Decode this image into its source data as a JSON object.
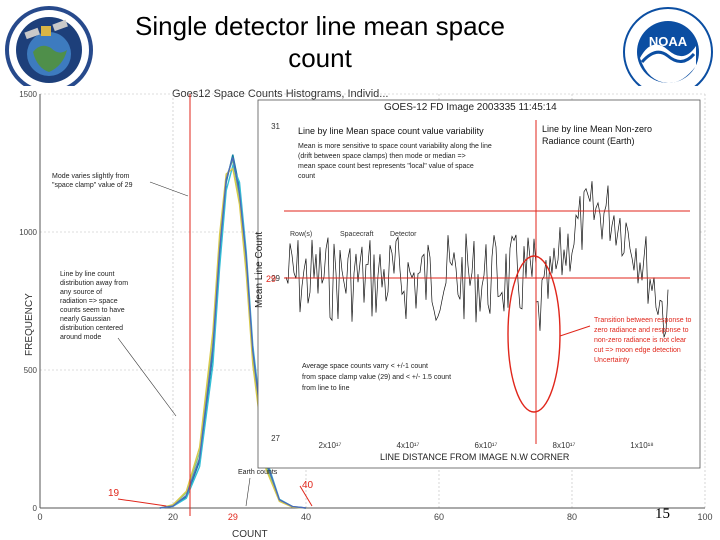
{
  "slide": {
    "title_line1": "Single detector line mean space",
    "title_line2": "count",
    "page_number": "15"
  },
  "colors": {
    "red": "#e0261b",
    "noaa_blue": "#0b4ea2",
    "orbit_blue": "#274a8c"
  },
  "icons": [
    "goes-satellite-logo",
    "noaa-logo"
  ],
  "chart_data": [
    {
      "type": "line",
      "title": "Goes12 Space Counts Histograms, Individ...",
      "ylabel": "FREQUENCY",
      "xlabel": "COUNT",
      "xlim": [
        0,
        100
      ],
      "ylim": [
        0,
        1500
      ],
      "x_ticks": [
        "0",
        "20",
        "29",
        "40",
        "60",
        "80",
        "100"
      ],
      "y_ticks": [
        "0",
        "500",
        "1000",
        "1500"
      ],
      "grid": true,
      "x": [
        18,
        20,
        22,
        24,
        26,
        27,
        28,
        29,
        30,
        31,
        32,
        34,
        36,
        38,
        40
      ],
      "series": [
        {
          "color": "#0d7fa0",
          "values": [
            0,
            8,
            40,
            170,
            560,
            910,
            1180,
            1280,
            1160,
            900,
            560,
            160,
            28,
            4,
            0
          ]
        },
        {
          "color": "#7cc98c",
          "values": [
            0,
            10,
            55,
            200,
            600,
            950,
            1200,
            1260,
            1120,
            880,
            540,
            150,
            26,
            4,
            0
          ]
        },
        {
          "color": "#33bfd6",
          "values": [
            0,
            6,
            35,
            150,
            520,
            870,
            1150,
            1240,
            1180,
            930,
            590,
            180,
            32,
            5,
            0
          ]
        },
        {
          "color": "#d8c94a",
          "values": [
            0,
            12,
            60,
            220,
            640,
            990,
            1210,
            1230,
            1100,
            850,
            520,
            140,
            24,
            3,
            0
          ]
        },
        {
          "color": "#4e6ab8",
          "values": [
            0,
            7,
            45,
            180,
            580,
            930,
            1190,
            1270,
            1140,
            910,
            570,
            170,
            30,
            5,
            0
          ]
        }
      ],
      "markers": [
        {
          "label": "19",
          "x": 19
        },
        {
          "label": "29",
          "x": 29
        },
        {
          "label": "40",
          "x": 40
        }
      ],
      "annotations": [
        {
          "lines": [
            "Mode varies slightly from",
            "\"space clamp\" value of 29"
          ]
        },
        {
          "lines": [
            "Line by line count",
            "distribution away from",
            "any source of",
            "radiation => space",
            "counts seem to have",
            "nearly Gaussian",
            "distribution centered",
            "around mode"
          ]
        },
        {
          "lines": [
            "Earth counts"
          ]
        }
      ]
    },
    {
      "type": "line",
      "title": "GOES-12 FD Image 2003335 11:45:14",
      "ylabel": "Mean Line Count",
      "xlabel": "LINE DISTANCE FROM IMAGE N.W CORNER",
      "xlim": [
        0,
        1.3e+17
      ],
      "ylim": [
        27,
        31
      ],
      "y_ticks": [
        "27",
        "29",
        "31"
      ],
      "x_ticks": [
        "2x10¹⁷",
        "4x10¹⁷",
        "6x10¹⁷",
        "8x10¹⁷",
        "1x10¹⁸"
      ],
      "reference_value_label": "29",
      "legend": [
        "Row(s)",
        "Spacecraft",
        "Detector"
      ],
      "annotations": [
        {
          "title": "Line by line Mean space count value variability",
          "lines": [
            "Mean is more sensitive to space count variability along the line",
            "(drift between space clamps) then mode or median =>",
            "mean space count best represents \"local\" value of space",
            "count"
          ]
        },
        {
          "title": "Line by line Mean Non-zero",
          "lines": [
            "Radiance count (Earth)"
          ]
        },
        {
          "lines": [
            "Average space counts varry < +/-1 count",
            "from space clamp value (29) and < +/- 1.5 count",
            "from line to line"
          ]
        },
        {
          "lines": [
            "Transition between response to",
            "zero radiance and response to",
            "non-zero radiance is not clear",
            "cut => moon edge detection",
            "Uncertainty"
          ]
        }
      ]
    }
  ]
}
